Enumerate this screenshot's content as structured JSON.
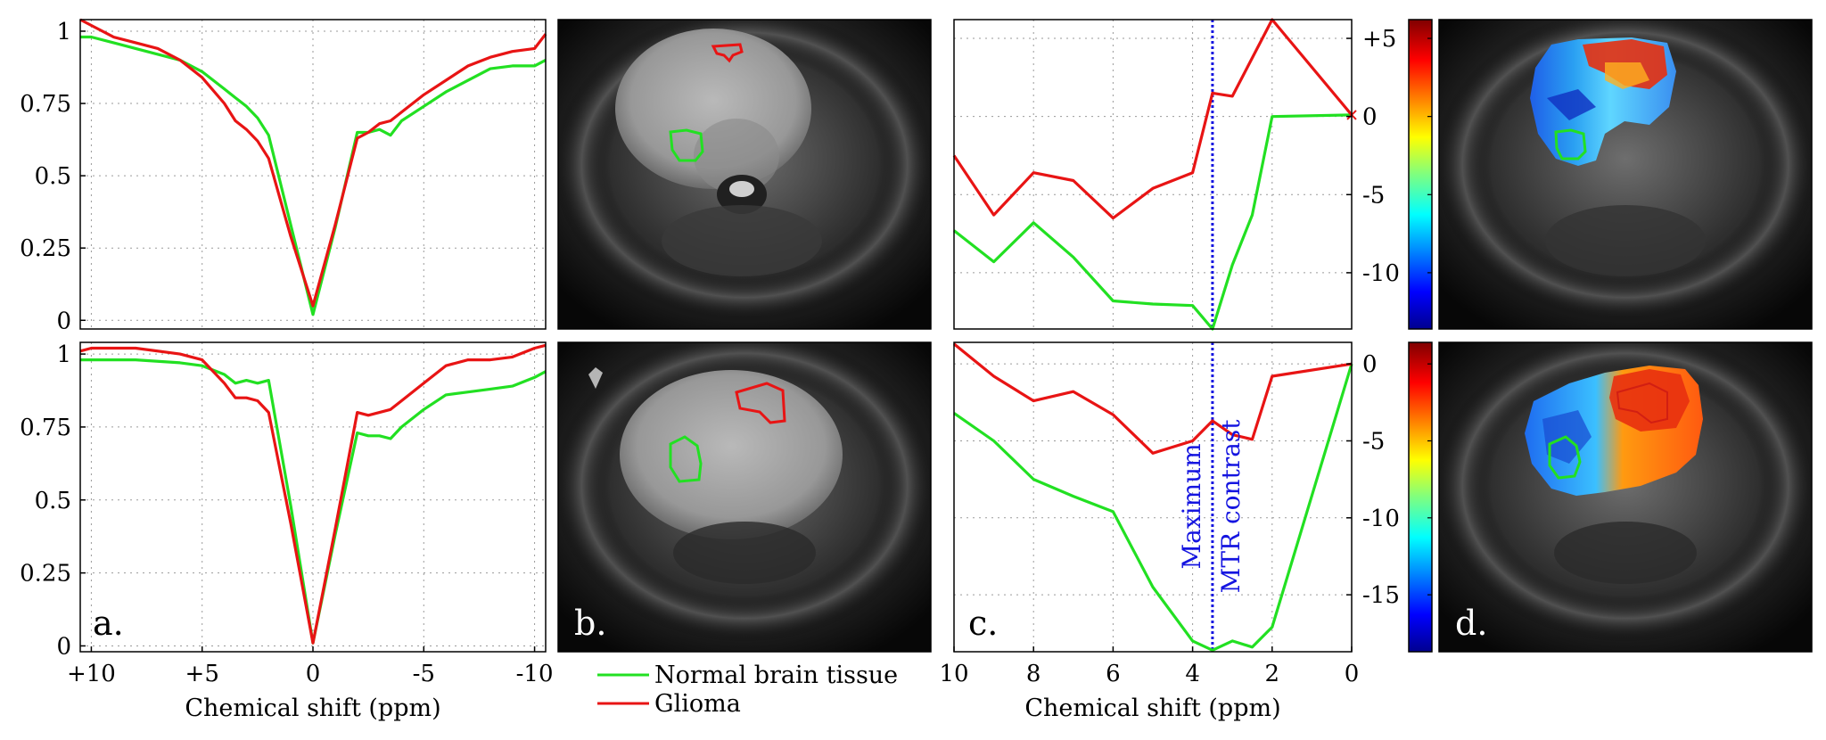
{
  "colors": {
    "normal": "#22e022",
    "glioma": "#e81414",
    "annotation": "#1515e0"
  },
  "legend": {
    "normal_label": "Normal brain tissue",
    "glioma_label": "Glioma"
  },
  "panel_labels": {
    "a": "a.",
    "b": "b.",
    "c": "c.",
    "d": "d."
  },
  "chart_data": [
    {
      "id": "a-top",
      "type": "line",
      "xlabel": "",
      "ylabel": "",
      "xlim": [
        10.5,
        -10.5
      ],
      "ylim": [
        -0.03,
        1.04
      ],
      "xticks": [],
      "xtick_labels": [],
      "yticks": [
        0,
        0.25,
        0.5,
        0.75,
        1
      ],
      "ytick_labels": [
        "0",
        "0.25",
        "0.5",
        "0.75",
        "1"
      ],
      "series": [
        {
          "name": "Normal brain tissue",
          "color": "#22e022",
          "x": [
            10.5,
            10,
            9,
            8,
            7,
            6,
            5,
            4,
            3.5,
            3,
            2.5,
            2,
            1,
            0,
            -1,
            -2,
            -2.5,
            -3,
            -3.5,
            -4,
            -5,
            -6,
            -7,
            -8,
            -9,
            -10,
            -10.5
          ],
          "y": [
            0.98,
            0.98,
            0.96,
            0.94,
            0.92,
            0.9,
            0.86,
            0.8,
            0.77,
            0.74,
            0.7,
            0.64,
            0.33,
            0.02,
            0.32,
            0.65,
            0.65,
            0.66,
            0.64,
            0.69,
            0.74,
            0.79,
            0.83,
            0.87,
            0.88,
            0.88,
            0.9
          ]
        },
        {
          "name": "Glioma",
          "color": "#e81414",
          "x": [
            10.5,
            10,
            9,
            8,
            7,
            6,
            5,
            4,
            3.5,
            3,
            2.5,
            2,
            1,
            0,
            -1,
            -2,
            -2.5,
            -3,
            -3.5,
            -4,
            -5,
            -6,
            -7,
            -8,
            -9,
            -10,
            -10.5
          ],
          "y": [
            1.04,
            1.02,
            0.98,
            0.96,
            0.94,
            0.9,
            0.84,
            0.75,
            0.69,
            0.66,
            0.62,
            0.56,
            0.29,
            0.05,
            0.33,
            0.63,
            0.65,
            0.68,
            0.69,
            0.72,
            0.78,
            0.83,
            0.88,
            0.91,
            0.93,
            0.94,
            0.99
          ]
        }
      ]
    },
    {
      "id": "a-bottom",
      "type": "line",
      "xlabel": "Chemical shift (ppm)",
      "ylabel": "",
      "xlim": [
        10.5,
        -10.5
      ],
      "ylim": [
        -0.02,
        1.04
      ],
      "xticks": [
        10,
        5,
        0,
        -5,
        -10
      ],
      "xtick_labels": [
        "+10",
        "+5",
        "0",
        "-5",
        "-10"
      ],
      "yticks": [
        0,
        0.25,
        0.5,
        0.75,
        1
      ],
      "ytick_labels": [
        "0",
        "0.25",
        "0.5",
        "0.75",
        "1"
      ],
      "series": [
        {
          "name": "Normal brain tissue",
          "color": "#22e022",
          "x": [
            10.5,
            10,
            8,
            6,
            5,
            4,
            3.5,
            3,
            2.5,
            2,
            1,
            0,
            -1,
            -2,
            -2.5,
            -3,
            -3.5,
            -4,
            -5,
            -6,
            -7,
            -8,
            -9,
            -10,
            -10.5
          ],
          "y": [
            0.98,
            0.98,
            0.98,
            0.97,
            0.96,
            0.93,
            0.9,
            0.91,
            0.9,
            0.91,
            0.48,
            0.01,
            0.38,
            0.73,
            0.72,
            0.72,
            0.71,
            0.75,
            0.81,
            0.86,
            0.87,
            0.88,
            0.89,
            0.92,
            0.94
          ]
        },
        {
          "name": "Glioma",
          "color": "#e81414",
          "x": [
            10.5,
            10,
            8,
            6,
            5,
            4,
            3.5,
            3,
            2.5,
            2,
            1,
            0,
            -1,
            -2,
            -2.5,
            -3,
            -3.5,
            -4,
            -5,
            -6,
            -7,
            -8,
            -9,
            -10,
            -10.5
          ],
          "y": [
            1.01,
            1.02,
            1.02,
            1.0,
            0.98,
            0.9,
            0.85,
            0.85,
            0.84,
            0.8,
            0.42,
            0.01,
            0.4,
            0.8,
            0.79,
            0.8,
            0.81,
            0.84,
            0.9,
            0.96,
            0.98,
            0.98,
            0.99,
            1.02,
            1.03
          ]
        }
      ]
    },
    {
      "id": "c-top",
      "type": "line",
      "xlabel": "",
      "ylabel": "",
      "xlim": [
        10,
        0
      ],
      "ylim": [
        -13.6,
        6.2
      ],
      "xticks": [],
      "xtick_labels": [],
      "yticks": [
        5,
        0,
        -5,
        -10
      ],
      "ytick_labels": [
        "+5",
        "0",
        "-5",
        "-10"
      ],
      "annotation_x": 3.5,
      "series": [
        {
          "name": "Normal brain tissue",
          "color": "#22e022",
          "x": [
            10,
            9,
            8,
            7,
            6,
            5,
            4,
            3.5,
            3,
            2.5,
            2,
            0
          ],
          "y": [
            -7.3,
            -9.3,
            -6.8,
            -9.0,
            -11.8,
            -12.0,
            -12.1,
            -13.6,
            -9.5,
            -6.3,
            0.0,
            0.1
          ]
        },
        {
          "name": "Glioma",
          "color": "#e81414",
          "x": [
            10,
            9,
            8,
            7,
            6,
            5,
            4,
            3.5,
            3,
            2,
            0
          ],
          "y": [
            -2.5,
            -6.3,
            -3.6,
            -4.1,
            -6.5,
            -4.6,
            -3.6,
            1.5,
            1.3,
            6.2,
            0.1
          ]
        }
      ]
    },
    {
      "id": "c-bottom",
      "type": "line",
      "xlabel": "Chemical shift (ppm)",
      "ylabel": "",
      "xlim": [
        10,
        0
      ],
      "ylim": [
        -18.7,
        1.4
      ],
      "xticks": [
        10,
        8,
        6,
        4,
        2,
        0
      ],
      "xtick_labels": [
        "10",
        "8",
        "6",
        "4",
        "2",
        "0"
      ],
      "yticks": [
        0,
        -5,
        -10,
        -15
      ],
      "ytick_labels": [
        "0",
        "-5",
        "-10",
        "-15"
      ],
      "annotation_x": 3.5,
      "annotation_lines": [
        "Maximum",
        "MTR contrast"
      ],
      "series": [
        {
          "name": "Normal brain tissue",
          "color": "#22e022",
          "x": [
            10,
            9,
            8,
            7,
            6,
            5,
            4,
            3.5,
            3,
            2.5,
            2,
            0
          ],
          "y": [
            -3.2,
            -5.0,
            -7.5,
            -8.6,
            -9.6,
            -14.5,
            -18.0,
            -18.6,
            -18.0,
            -18.4,
            -17.1,
            0.0
          ]
        },
        {
          "name": "Glioma",
          "color": "#e81414",
          "x": [
            10,
            9,
            8,
            7,
            6,
            5,
            4,
            3.5,
            3,
            2.5,
            2,
            0
          ],
          "y": [
            1.3,
            -0.8,
            -2.4,
            -1.8,
            -3.3,
            -5.8,
            -5.0,
            -3.7,
            -4.6,
            -4.9,
            -0.8,
            0.0
          ]
        }
      ]
    }
  ],
  "colorbars": [
    {
      "id": "d-top",
      "ticks": [
        5,
        0,
        -5,
        -10
      ],
      "tick_labels": [
        "+5",
        "0",
        "-5",
        "-10"
      ],
      "range": [
        -13.6,
        6.2
      ]
    },
    {
      "id": "d-bottom",
      "ticks": [
        0,
        -5,
        -10,
        -15
      ],
      "tick_labels": [
        "0",
        "-5",
        "-10",
        "-15"
      ],
      "range": [
        -18.7,
        1.4
      ]
    }
  ]
}
